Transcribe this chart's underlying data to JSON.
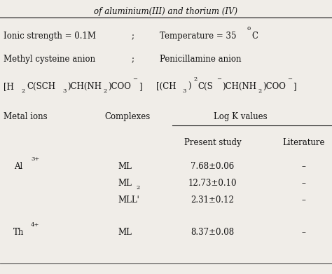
{
  "title_line": "of aluminium(III) and thorium (IV)",
  "bg_color": "#f0ede8",
  "text_color": "#111111",
  "table_headers": [
    "Metal ions",
    "Complexes",
    "Log K values"
  ],
  "sub_headers": [
    "Present study",
    "Literature"
  ],
  "data_rows": [
    {
      "metal": "Al",
      "metal_sup": "3+",
      "complex": "ML",
      "present": "7.68±0.06",
      "lit": "–"
    },
    {
      "metal": "",
      "metal_sup": "",
      "complex": "ML2",
      "present": "12.73±0.10",
      "lit": "–"
    },
    {
      "metal": "",
      "metal_sup": "",
      "complex": "MLL'",
      "present": "2.31±0.12",
      "lit": "–"
    },
    {
      "metal": "Th",
      "metal_sup": "4+",
      "complex": "ML",
      "present": "8.37±0.08",
      "lit": "–"
    }
  ]
}
